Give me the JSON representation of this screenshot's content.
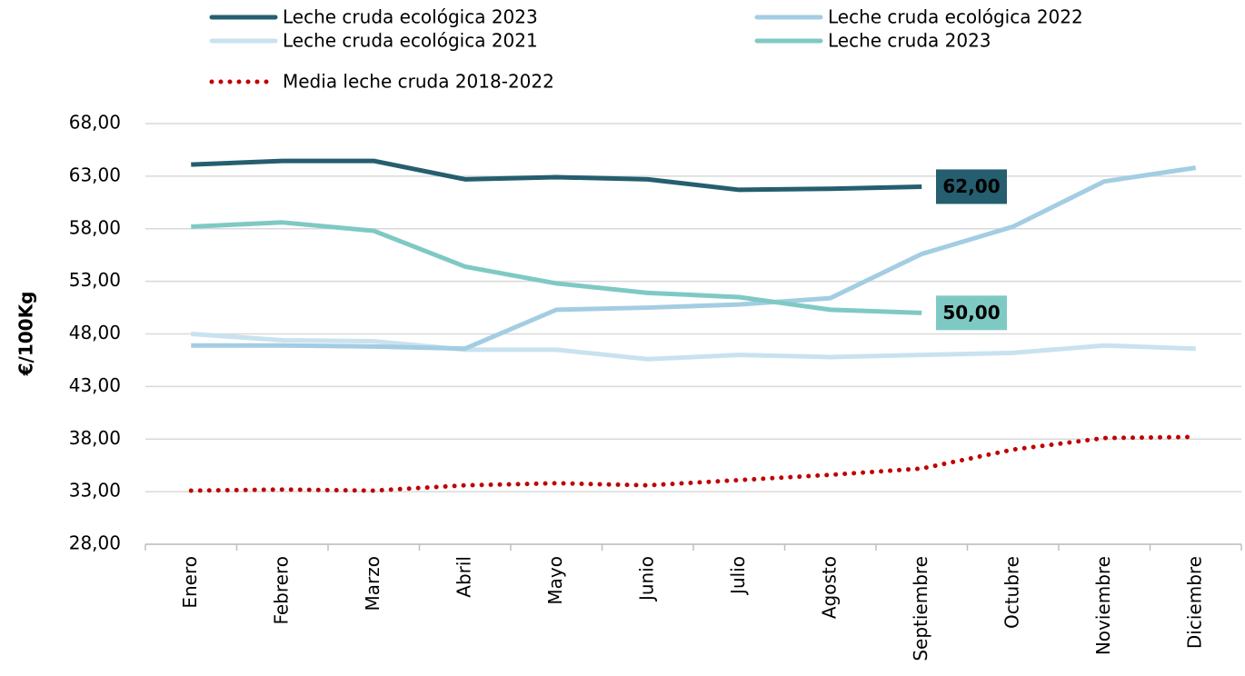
{
  "chart_data": {
    "type": "line",
    "y_label": "€/100Kg",
    "categories": [
      "Enero",
      "Febrero",
      "Marzo",
      "Abril",
      "Mayo",
      "Junio",
      "Julio",
      "Agosto",
      "Septiembre",
      "Octubre",
      "Noviembre",
      "Diciembre"
    ],
    "series": [
      {
        "name": "Leche cruda ecológica 2023",
        "color": "#255e6f",
        "values": [
          64.1,
          64.45,
          64.45,
          62.7,
          62.9,
          62.7,
          61.7,
          61.8,
          62.0,
          null,
          null,
          null
        ],
        "value_labels": [
          null,
          null,
          null,
          null,
          null,
          null,
          null,
          null,
          "62,00",
          null,
          null,
          null
        ]
      },
      {
        "name": "Leche cruda ecológica 2022",
        "color": "#a3cde2",
        "values": [
          46.9,
          46.9,
          46.8,
          46.6,
          50.3,
          50.5,
          50.8,
          51.4,
          55.6,
          58.2,
          62.5,
          63.8
        ]
      },
      {
        "name": "Leche cruda ecológica 2021",
        "color": "#c9e2ef",
        "values": [
          48.0,
          47.4,
          47.3,
          46.5,
          46.5,
          45.6,
          46.0,
          45.8,
          46.0,
          46.2,
          46.9,
          46.6
        ]
      },
      {
        "name": "Leche cruda 2023",
        "color": "#7fc9c4",
        "values": [
          58.2,
          58.6,
          57.8,
          54.4,
          52.8,
          51.9,
          51.5,
          50.3,
          50.0,
          null,
          null,
          null
        ],
        "value_labels": [
          null,
          null,
          null,
          null,
          null,
          null,
          null,
          null,
          "50,00",
          null,
          null,
          null
        ]
      },
      {
        "name": "Media leche cruda 2018-2022",
        "color": "#c00000",
        "dotted": true,
        "values": [
          33.1,
          33.2,
          33.1,
          33.6,
          33.8,
          33.6,
          34.1,
          34.6,
          35.2,
          37.0,
          38.1,
          38.2
        ]
      }
    ],
    "ylim": [
      28,
      68
    ],
    "yticks": [
      {
        "value": 28,
        "label": "28,00"
      },
      {
        "value": 33,
        "label": "33,00"
      },
      {
        "value": 38,
        "label": "38,00"
      },
      {
        "value": 43,
        "label": "43,00"
      },
      {
        "value": 48,
        "label": "48,00"
      },
      {
        "value": 53,
        "label": "53,00"
      },
      {
        "value": 58,
        "label": "58,00"
      },
      {
        "value": 63,
        "label": "63,00"
      },
      {
        "value": 68,
        "label": "68,00"
      }
    ],
    "grid": true,
    "legend": "top"
  }
}
